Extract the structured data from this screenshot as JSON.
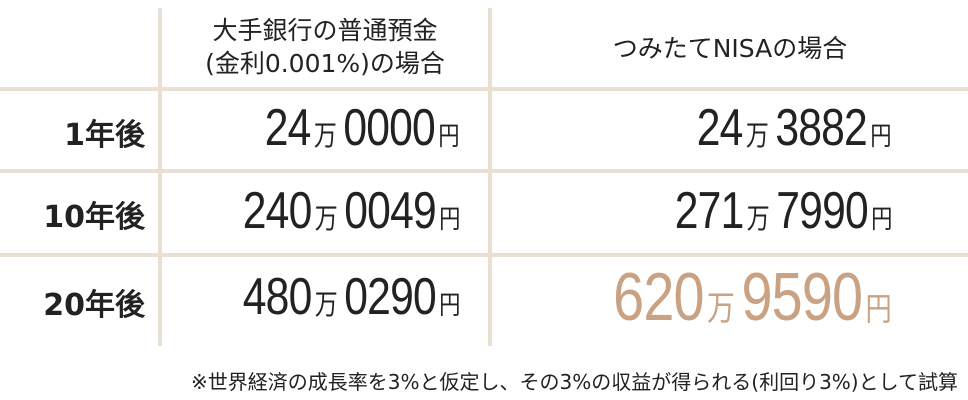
{
  "header": {
    "col_bank": [
      "大手銀行の普通預金",
      "(金利0.001%)の場合"
    ],
    "col_nisa": "つみたてNISAの場合"
  },
  "rows": [
    {
      "label": "1年後",
      "bank": {
        "man": "24",
        "rest": "0000"
      },
      "nisa": {
        "man": "24",
        "rest": "3882"
      }
    },
    {
      "label": "10年後",
      "bank": {
        "man": "240",
        "rest": "0049"
      },
      "nisa": {
        "man": "271",
        "rest": "7990"
      }
    },
    {
      "label": "20年後",
      "bank": {
        "man": "480",
        "rest": "0290"
      },
      "nisa": {
        "man": "620",
        "rest": "9590"
      }
    }
  ],
  "units": {
    "man": "万",
    "yen": "円"
  },
  "footnote": "※世界経済の成長率を3%と仮定し、その3%の収益が得られる(利回り3%)として試算",
  "colors": {
    "grid": "#eadfd3",
    "highlight": "#c9a183",
    "text": "#222222"
  }
}
